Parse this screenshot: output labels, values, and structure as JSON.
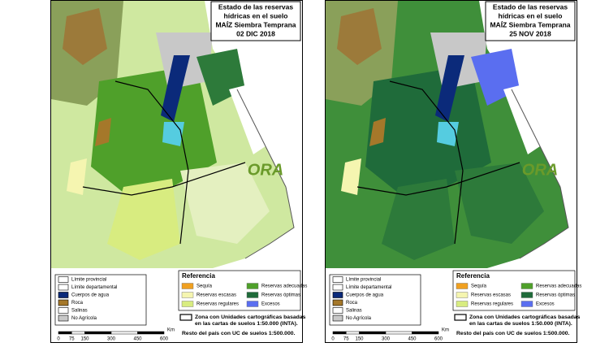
{
  "panels": [
    {
      "title": [
        "Estado de las reservas",
        "hídricas en el suelo",
        "MAÍZ Siembra Temprana",
        "02 DIC 2018"
      ]
    },
    {
      "title": [
        "Estado de las reservas",
        "hídricas en el suelo",
        "MAÍZ Siembra Temprana",
        "25 NOV 2018"
      ]
    }
  ],
  "logo": "ORA",
  "legend_left": [
    {
      "label": "Límite provincial",
      "color": "#ffffff"
    },
    {
      "label": "Límite departamental",
      "color": "#ffffff"
    },
    {
      "label": "Cuerpos de agua",
      "color": "#0b2a7a"
    },
    {
      "label": "Roca",
      "color": "#a5782a"
    },
    {
      "label": "Salinas",
      "color": "#ffffff"
    },
    {
      "label": "No Agrícola",
      "color": "#c8c8c8"
    }
  ],
  "legend_right": {
    "title": "Referencia",
    "items": [
      {
        "label": "Sequía",
        "color": "#f0a020"
      },
      {
        "label": "Reservas escasas",
        "color": "#f5f5b0"
      },
      {
        "label": "Reservas regulares",
        "color": "#d8ec80"
      },
      {
        "label": "Reservas adecuadas",
        "color": "#4fa02a"
      },
      {
        "label": "Reservas óptimas",
        "color": "#1f6b3a"
      },
      {
        "label": "Excesos",
        "color": "#5a6ef0"
      }
    ]
  },
  "zone_note": [
    "Zona con Unidades cartográficas basadas",
    "en las cartas de suelos 1:50.000 (INTA).",
    "Resto del país con UC de suelos 1:500.000."
  ],
  "scale": {
    "ticks": [
      0,
      75,
      150,
      300,
      450,
      600
    ],
    "unit": "Km"
  }
}
